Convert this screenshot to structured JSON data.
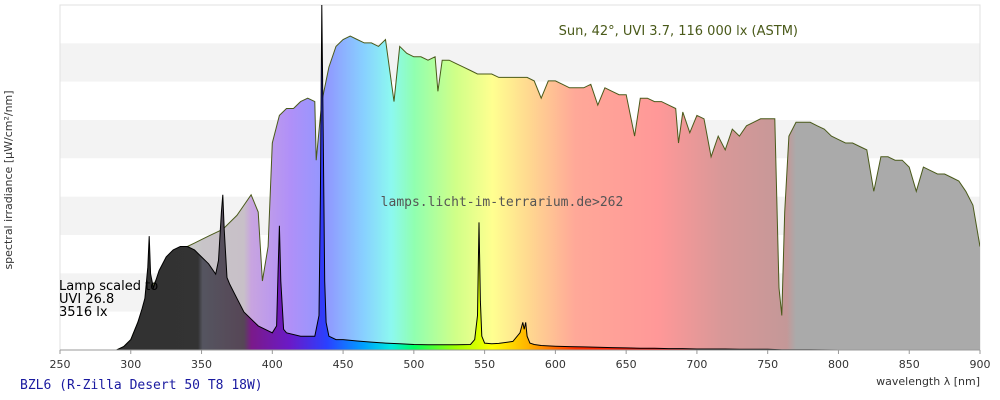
{
  "chart_data": {
    "type": "area",
    "xlabel": "wavelength λ [nm]",
    "ylabel": "spectral irradiance [µW/cm²/nm]",
    "xlim": [
      250,
      900
    ],
    "ylim": [
      0,
      100
    ],
    "x_ticks": [
      250,
      300,
      350,
      400,
      450,
      500,
      550,
      600,
      650,
      700,
      750,
      800,
      850,
      900
    ],
    "grid_bands": true,
    "sun_label": "Sun, 42°, UVI 3.7, 116 000 lx (ASTM)",
    "lamp_note": [
      "Lamp scaled to",
      "UVI 26.8",
      "3516 lx"
    ],
    "watermark": "lamps.licht-im-terrarium.de>262",
    "lamp_title": "BZL6 (R-Zilla Desert 50 T8 18W)",
    "series": [
      {
        "role": "sun",
        "x": [
          290,
          295,
          300,
          305,
          310,
          315,
          320,
          325,
          330,
          335,
          340,
          345,
          350,
          355,
          360,
          365,
          370,
          375,
          380,
          385,
          390,
          393,
          397,
          400,
          405,
          410,
          415,
          420,
          425,
          430,
          431,
          435,
          440,
          445,
          450,
          455,
          460,
          465,
          470,
          475,
          480,
          486,
          490,
          495,
          500,
          505,
          510,
          515,
          517,
          520,
          525,
          530,
          535,
          540,
          545,
          550,
          555,
          560,
          565,
          570,
          575,
          580,
          585,
          590,
          595,
          600,
          605,
          610,
          615,
          620,
          625,
          630,
          635,
          640,
          645,
          650,
          656,
          660,
          665,
          670,
          675,
          680,
          685,
          687,
          690,
          695,
          700,
          705,
          710,
          715,
          720,
          725,
          730,
          735,
          740,
          745,
          750,
          755,
          758,
          760,
          762,
          765,
          770,
          775,
          780,
          785,
          790,
          795,
          800,
          805,
          810,
          815,
          820,
          825,
          830,
          835,
          840,
          845,
          850,
          855,
          860,
          865,
          870,
          875,
          880,
          885,
          890,
          895,
          900
        ],
        "y": [
          0,
          1,
          3,
          8,
          13,
          18,
          22,
          24,
          27,
          29,
          30,
          31,
          32,
          33,
          34,
          35,
          37,
          39,
          42,
          45,
          40,
          20,
          30,
          60,
          68,
          70,
          70,
          72,
          73,
          72,
          55,
          72,
          82,
          88,
          90,
          91,
          90,
          89,
          89,
          88,
          90,
          72,
          88,
          86,
          85,
          85,
          84,
          85,
          75,
          84,
          84,
          83,
          82,
          81,
          80,
          80,
          80,
          79,
          79,
          79,
          79,
          79,
          78,
          73,
          78,
          78,
          77,
          76,
          76,
          76,
          77,
          71,
          76,
          75,
          74,
          74,
          62,
          73,
          73,
          72,
          72,
          71,
          70,
          60,
          69,
          63,
          68,
          67,
          56,
          62,
          58,
          64,
          62,
          65,
          66,
          67,
          67,
          67,
          18,
          10,
          40,
          62,
          66,
          66,
          66,
          65,
          64,
          62,
          61,
          60,
          60,
          59,
          58,
          46,
          56,
          56,
          55,
          55,
          53,
          46,
          53,
          52,
          51,
          51,
          50,
          49,
          46,
          42,
          30
        ]
      },
      {
        "role": "lamp",
        "x": [
          250,
          290,
          295,
          300,
          305,
          308,
          310,
          312,
          313,
          314,
          316,
          320,
          325,
          330,
          335,
          340,
          345,
          350,
          355,
          360,
          362,
          364,
          365,
          366,
          368,
          370,
          375,
          380,
          390,
          400,
          403,
          404,
          405,
          406,
          408,
          410,
          420,
          430,
          433,
          434,
          435,
          436,
          437,
          438,
          440,
          445,
          450,
          460,
          470,
          480,
          490,
          500,
          510,
          520,
          530,
          540,
          543,
          545,
          546,
          547,
          548,
          550,
          555,
          560,
          570,
          575,
          577,
          578,
          579,
          580,
          582,
          585,
          590,
          600,
          610,
          620,
          630,
          640,
          650,
          660,
          670,
          680,
          690,
          700,
          710,
          720,
          730,
          740,
          750,
          760,
          780,
          800,
          900
        ],
        "y": [
          0,
          0,
          1,
          3,
          8,
          12,
          15,
          24,
          33,
          22,
          18,
          23,
          27,
          29,
          30,
          30,
          29,
          27,
          25,
          22,
          26,
          40,
          45,
          35,
          21,
          19,
          15,
          11,
          7,
          5,
          7,
          22,
          36,
          20,
          6,
          5,
          4,
          4,
          10,
          45,
          100,
          60,
          20,
          8,
          4,
          3,
          3,
          2.6,
          2.3,
          2.0,
          1.8,
          1.6,
          1.5,
          1.5,
          1.5,
          1.6,
          3,
          10,
          37,
          14,
          4,
          2,
          1.8,
          1.9,
          2.5,
          5,
          8,
          6,
          8,
          4,
          2,
          1.6,
          1.3,
          1.1,
          1.0,
          0.9,
          0.8,
          0.7,
          0.6,
          0.5,
          0.5,
          0.4,
          0.4,
          0.3,
          0.3,
          0.3,
          0.2,
          0.2,
          0.2,
          0.1,
          0.1,
          0,
          0
        ]
      }
    ]
  }
}
